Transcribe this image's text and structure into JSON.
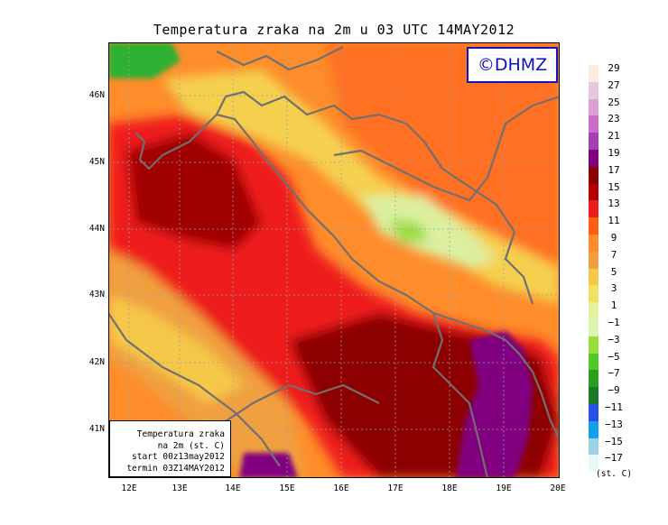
{
  "title": "Temperatura zraka na 2m u 03 UTC 14MAY2012",
  "logo": "©DHMZ",
  "info_box": [
    "Temperatura zraka",
    "na 2m (st. C)",
    "start 00z13may2012",
    "termin 03Z14MAY2012"
  ],
  "axes": {
    "x_ticks": [
      "12E",
      "13E",
      "14E",
      "15E",
      "16E",
      "17E",
      "18E",
      "19E",
      "20E"
    ],
    "y_ticks": [
      "46N",
      "45N",
      "44N",
      "43N",
      "42N",
      "41N"
    ]
  },
  "colorbar": {
    "labels": [
      "29",
      "27",
      "25",
      "23",
      "21",
      "19",
      "17",
      "15",
      "13",
      "11",
      "9",
      "7",
      "5",
      "3",
      "1",
      "−1",
      "−3",
      "−5",
      "−7",
      "−9",
      "−11",
      "−13",
      "−15",
      "−17"
    ],
    "colors": [
      "#fbeee0",
      "#e6c8dc",
      "#dca0d2",
      "#c86ec8",
      "#a440b4",
      "#800080",
      "#8c0000",
      "#b40000",
      "#ee1c1c",
      "#ff5f10",
      "#ff8c2a",
      "#f0a040",
      "#f5c84a",
      "#f2e060",
      "#e6f0a0",
      "#dcf4b4",
      "#9adc3c",
      "#50c828",
      "#28a01e",
      "#1e7828",
      "#2850e6",
      "#14a0e6",
      "#a0d2e6",
      "#e6f8f8"
    ],
    "unit": "(st. C)"
  },
  "colors": {
    "border": "#707070",
    "grid": "#a0a0a0",
    "logo": "#1010c0"
  }
}
